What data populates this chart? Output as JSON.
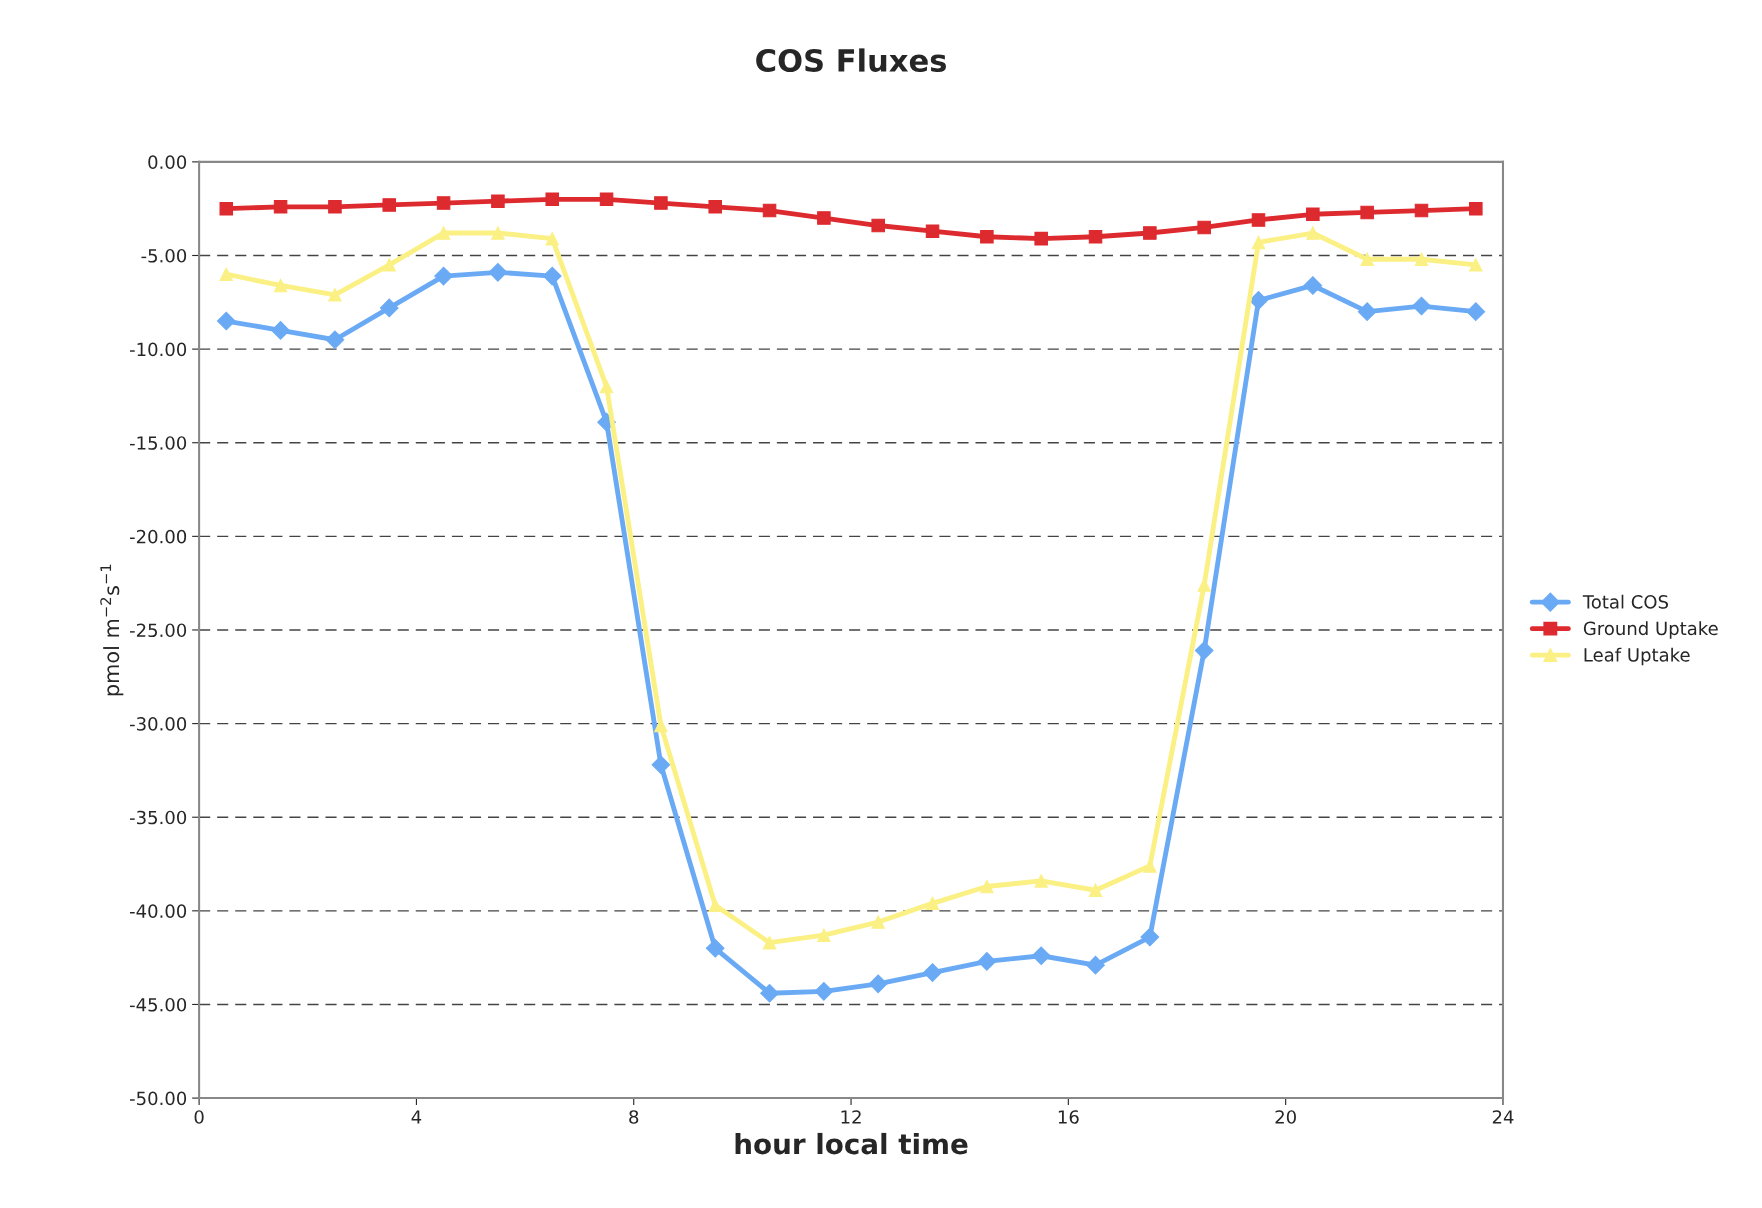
{
  "chart_data": {
    "type": "line",
    "title": "COS Fluxes",
    "xlabel": "hour local time",
    "ylabel": "pmol m$^{−2}$s$^{−1}$",
    "x": [
      0.5,
      1.5,
      2.5,
      3.5,
      4.5,
      5.5,
      6.5,
      7.5,
      8.5,
      9.5,
      10.5,
      11.5,
      12.5,
      13.5,
      14.5,
      15.5,
      16.5,
      17.5,
      18.5,
      19.5,
      20.5,
      21.5,
      22.5,
      23.5
    ],
    "series": [
      {
        "name": "Total COS",
        "color": "#6aaaf5",
        "marker": "diamond",
        "values": [
          -8.5,
          -9.0,
          -9.5,
          -7.8,
          -6.1,
          -5.9,
          -6.1,
          -13.9,
          -32.2,
          -42.0,
          -44.4,
          -44.3,
          -43.9,
          -43.3,
          -42.7,
          -42.4,
          -42.9,
          -41.4,
          -26.1,
          -7.4,
          -6.6,
          -8.0,
          -7.7,
          -8.0
        ]
      },
      {
        "name": "Ground Uptake",
        "color": "#dd2a2f",
        "marker": "square",
        "values": [
          -2.5,
          -2.4,
          -2.4,
          -2.3,
          -2.2,
          -2.1,
          -2.0,
          -2.0,
          -2.2,
          -2.4,
          -2.6,
          -3.0,
          -3.4,
          -3.7,
          -4.0,
          -4.1,
          -4.0,
          -3.8,
          -3.5,
          -3.1,
          -2.8,
          -2.7,
          -2.6,
          -2.5
        ]
      },
      {
        "name": "Leaf Uptake",
        "color": "#fbf084",
        "marker": "triangle",
        "values": [
          -6.0,
          -6.6,
          -7.1,
          -5.5,
          -3.8,
          -3.8,
          -4.1,
          -12.0,
          -30.1,
          -39.7,
          -41.7,
          -41.3,
          -40.6,
          -39.6,
          -38.7,
          -38.4,
          -38.9,
          -37.6,
          -22.6,
          -4.3,
          -3.8,
          -5.2,
          -5.2,
          -5.5
        ]
      }
    ],
    "xlim": [
      0,
      24
    ],
    "xticks": [
      0,
      4,
      8,
      12,
      16,
      20,
      24
    ],
    "ylim": [
      -50,
      0
    ],
    "yticks": [
      {
        "value": 0,
        "label": "0.00"
      },
      {
        "value": -5,
        "label": "-5.00"
      },
      {
        "value": -10,
        "label": "-10.00"
      },
      {
        "value": -15,
        "label": "-15.00"
      },
      {
        "value": -20,
        "label": "-20.00"
      },
      {
        "value": -25,
        "label": "-25.00"
      },
      {
        "value": -30,
        "label": "-30.00"
      },
      {
        "value": -35,
        "label": "-35.00"
      },
      {
        "value": -40,
        "label": "-40.00"
      },
      {
        "value": -45,
        "label": "-45.00"
      },
      {
        "value": -50,
        "label": "-50.00"
      }
    ],
    "grid": "y",
    "legend": "right",
    "line_style": "solid"
  }
}
